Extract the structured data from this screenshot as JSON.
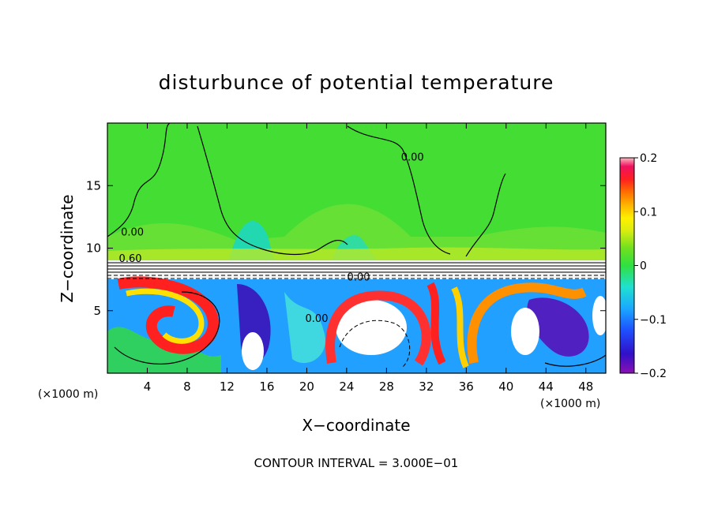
{
  "chart_data": {
    "type": "heatmap",
    "title": "disturbunce of potential temperature",
    "xlabel": "X−coordinate",
    "ylabel": "Z−coordinate",
    "x_unit": "(×1000 m)",
    "z_unit": "(×1000 m)",
    "xlim": [
      0,
      50
    ],
    "ylim": [
      0,
      20
    ],
    "x_ticks": [
      4,
      8,
      12,
      16,
      20,
      24,
      28,
      32,
      36,
      40,
      44,
      48
    ],
    "y_ticks": [
      5,
      10,
      15
    ],
    "colorbar": {
      "vmin": -0.2,
      "vmax": 0.2,
      "ticks": [
        {
          "value": 0.2,
          "label": "0.2"
        },
        {
          "value": 0.1,
          "label": "0.1"
        },
        {
          "value": 0,
          "label": "0"
        },
        {
          "value": -0.1,
          "label": "−0.1"
        },
        {
          "value": -0.2,
          "label": "−0.2"
        }
      ]
    },
    "contour_labels": [
      {
        "text": "0.00",
        "x": 2.5,
        "z": 11.0
      },
      {
        "text": "0.60",
        "x": 2.3,
        "z": 8.9
      },
      {
        "text": "0.00",
        "x": 30.6,
        "z": 17.0
      },
      {
        "text": "0.00",
        "x": 25.2,
        "z": 7.4
      },
      {
        "text": "0.00",
        "x": 21.0,
        "z": 4.1
      }
    ],
    "footer": "CONTOUR INTERVAL = 3.000E−01"
  }
}
